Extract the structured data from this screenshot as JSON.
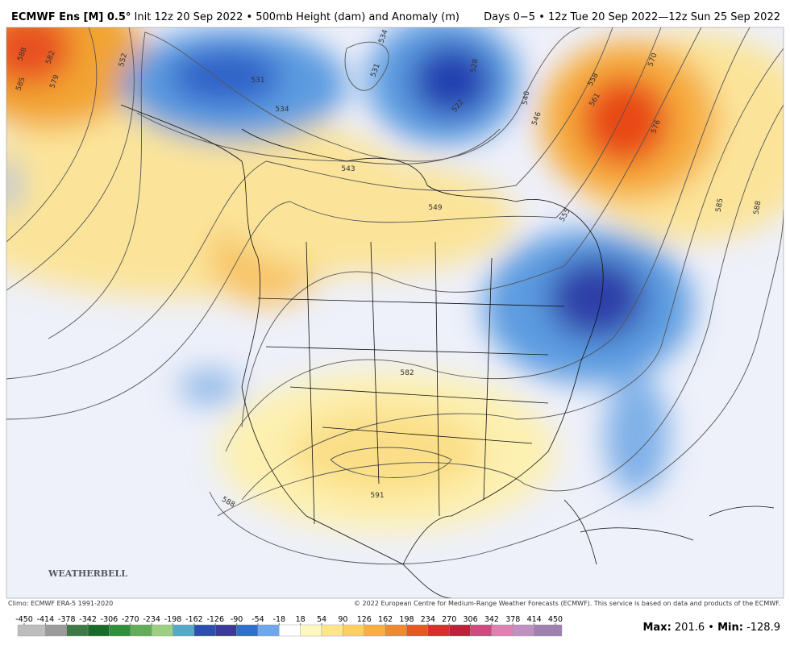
{
  "header": {
    "model": "ECMWF Ens [M] 0.5°",
    "init": "Init 12z 20 Sep 2022 • 500mb Height (dam) and Anomaly (m)",
    "valid": "Days 0−5 • 12z Tue 20 Sep 2022—12z Sun 25 Sep 2022"
  },
  "map": {
    "contour_labels": [
      588,
      582,
      585,
      579,
      552,
      531,
      534,
      534,
      531,
      528,
      522,
      540,
      546,
      558,
      561,
      570,
      576,
      585,
      588,
      549,
      555,
      543,
      582,
      591,
      588
    ],
    "logo": "WEATHERBELL"
  },
  "footer": {
    "climo": "Climo: ECMWF ERA-5 1991-2020",
    "copyright": "© 2022 European Centre for Medium-Range Weather Forecasts (ECMWF). This service is based on data and products of the ECMWF."
  },
  "colorbar": {
    "ticks": [
      -450,
      -414,
      -378,
      -342,
      -306,
      -270,
      -234,
      -198,
      -162,
      -126,
      -90,
      -54,
      -18,
      18,
      54,
      90,
      126,
      162,
      198,
      234,
      270,
      306,
      342,
      378,
      414,
      450
    ],
    "colors": [
      "#bdbdbd",
      "#9a9a9a",
      "#3f7a46",
      "#1a6a2a",
      "#2f8f3a",
      "#63ad58",
      "#9ccf82",
      "#53a9c8",
      "#2a4fb0",
      "#3a3a9e",
      "#2f6fd0",
      "#6fa8e8",
      "#ffffff",
      "#fff7c0",
      "#fde68a",
      "#fbd060",
      "#f7b040",
      "#f08a30",
      "#e65a20",
      "#d8302a",
      "#c0203a",
      "#d04a80",
      "#e080b0",
      "#c090c0",
      "#a080b0"
    ]
  },
  "stats": {
    "max_label": "Max:",
    "max": 201.6,
    "separator": "•",
    "min_label": "Min:",
    "min": -128.9
  }
}
